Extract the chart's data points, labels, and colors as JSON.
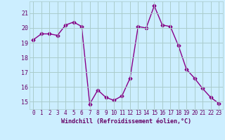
{
  "x": [
    0,
    1,
    2,
    3,
    4,
    5,
    6,
    7,
    8,
    9,
    10,
    11,
    12,
    13,
    14,
    15,
    16,
    17,
    18,
    19,
    20,
    21,
    22,
    23
  ],
  "y": [
    19.2,
    19.6,
    19.6,
    19.5,
    20.2,
    20.4,
    20.1,
    14.85,
    15.8,
    15.3,
    15.1,
    15.4,
    16.6,
    20.1,
    20.0,
    21.5,
    20.2,
    20.1,
    18.8,
    17.2,
    16.6,
    15.9,
    15.3,
    14.9
  ],
  "line_color": "#880088",
  "marker": "D",
  "markersize": 2.5,
  "linewidth": 1.0,
  "xlabel": "Windchill (Refroidissement éolien,°C)",
  "xlim": [
    -0.5,
    23.5
  ],
  "ylim": [
    14.5,
    21.8
  ],
  "yticks": [
    15,
    16,
    17,
    18,
    19,
    20,
    21
  ],
  "xticks": [
    0,
    1,
    2,
    3,
    4,
    5,
    6,
    7,
    8,
    9,
    10,
    11,
    12,
    13,
    14,
    15,
    16,
    17,
    18,
    19,
    20,
    21,
    22,
    23
  ],
  "bg_color": "#cceeff",
  "grid_color": "#aacccc",
  "font_color": "#660066",
  "font_family": "monospace"
}
